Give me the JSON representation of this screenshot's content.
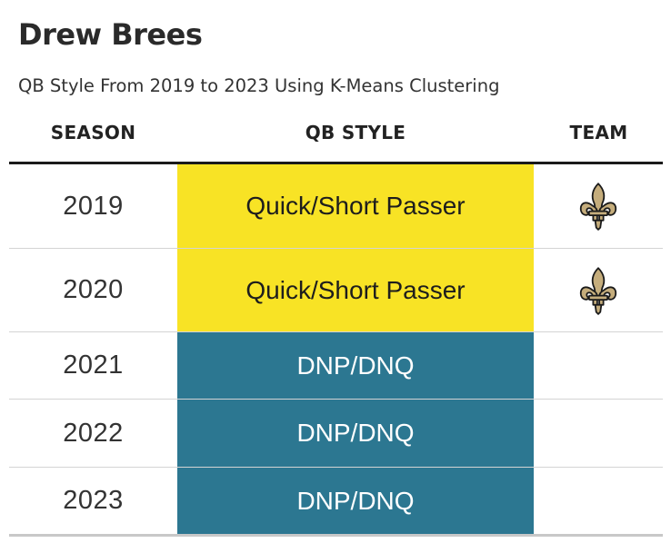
{
  "header": {
    "title": "Drew Brees",
    "subtitle": "QB Style From 2019 to 2023 Using K-Means Clustering"
  },
  "table": {
    "columns": {
      "season": "SEASON",
      "qb_style": "QB STYLE",
      "team": "TEAM"
    },
    "rows": [
      {
        "season": "2019",
        "qb_style": "Quick/Short Passer",
        "style_color": "#f8e325",
        "team_logo": "fleur-de-lis-icon"
      },
      {
        "season": "2020",
        "qb_style": "Quick/Short Passer",
        "style_color": "#f8e325",
        "team_logo": "fleur-de-lis-icon"
      },
      {
        "season": "2021",
        "qb_style": "DNP/DNQ",
        "style_color": "#2c7791",
        "team_logo": ""
      },
      {
        "season": "2022",
        "qb_style": "DNP/DNQ",
        "style_color": "#2c7791",
        "team_logo": ""
      },
      {
        "season": "2023",
        "qb_style": "DNP/DNQ",
        "style_color": "#2c7791",
        "team_logo": ""
      }
    ]
  },
  "colors": {
    "quick_short_passer": "#f8e325",
    "dnp_dnq": "#2c7791",
    "logo_gold": "#c5ad7c",
    "logo_outline": "#1a1a1a"
  }
}
